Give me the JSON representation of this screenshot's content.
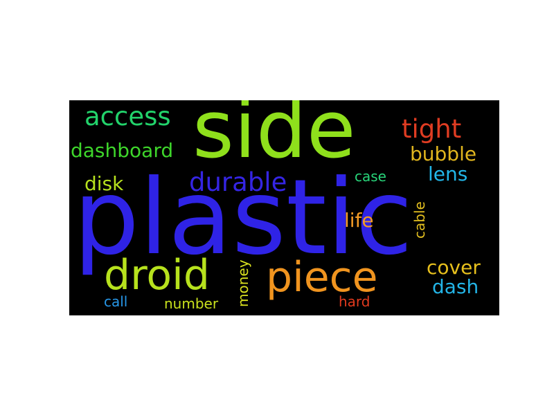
{
  "word_cloud": {
    "background": "#000000",
    "words": [
      {
        "text": "plastic",
        "color": "#2f23e6",
        "orientation": "horizontal"
      },
      {
        "text": "side",
        "color": "#8fe01c",
        "orientation": "horizontal"
      },
      {
        "text": "access",
        "color": "#22d36b",
        "orientation": "horizontal"
      },
      {
        "text": "tight",
        "color": "#df3c22",
        "orientation": "horizontal"
      },
      {
        "text": "dashboard",
        "color": "#3ed62b",
        "orientation": "horizontal"
      },
      {
        "text": "bubble",
        "color": "#e0b51e",
        "orientation": "horizontal"
      },
      {
        "text": "durable",
        "color": "#3525e3",
        "orientation": "horizontal"
      },
      {
        "text": "lens",
        "color": "#22b6e8",
        "orientation": "horizontal"
      },
      {
        "text": "disk",
        "color": "#b6e01e",
        "orientation": "horizontal"
      },
      {
        "text": "case",
        "color": "#28d57a",
        "orientation": "horizontal"
      },
      {
        "text": "life",
        "color": "#f39b26",
        "orientation": "horizontal"
      },
      {
        "text": "cable",
        "color": "#e2be1f",
        "orientation": "vertical"
      },
      {
        "text": "droid",
        "color": "#b7e21d",
        "orientation": "horizontal"
      },
      {
        "text": "piece",
        "color": "#f0941f",
        "orientation": "horizontal"
      },
      {
        "text": "money",
        "color": "#d9e01f",
        "orientation": "vertical"
      },
      {
        "text": "cover",
        "color": "#e7c01d",
        "orientation": "horizontal"
      },
      {
        "text": "dash",
        "color": "#23b4e6",
        "orientation": "horizontal"
      },
      {
        "text": "call",
        "color": "#2797e8",
        "orientation": "horizontal"
      },
      {
        "text": "number",
        "color": "#c9e11d",
        "orientation": "horizontal"
      },
      {
        "text": "hard",
        "color": "#e23a1e",
        "orientation": "horizontal"
      }
    ]
  }
}
